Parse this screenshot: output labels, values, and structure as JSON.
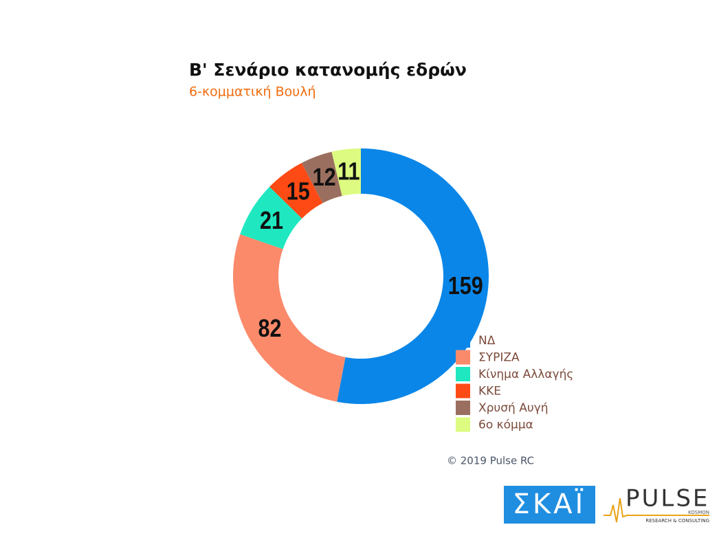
{
  "chart_data": {
    "type": "donut",
    "title": "Β' Σενάριο κατανομής εδρών",
    "subtitle": "6-κομματική Βουλή",
    "categories": [
      "ΝΔ",
      "ΣΥΡΙΖΑ",
      "Κίνημα Αλλαγής",
      "ΚΚΕ",
      "Χρυσή Αυγή",
      "6ο κόμμα"
    ],
    "values": [
      159,
      82,
      21,
      15,
      12,
      11
    ],
    "colors": [
      "#0a86e8",
      "#fb8a6b",
      "#1fe8c1",
      "#fe4b15",
      "#9b6f5f",
      "#dcfb80"
    ],
    "legend": "bottom-right"
  },
  "footer": {
    "copyright": "© 2019 Pulse RC",
    "logos": {
      "skai": "ΣΚΑΪ",
      "pulse": "PULSE",
      "pulse_sub": "RESEARCH & CONSULTING",
      "pulse_tag": "KOSMON"
    }
  }
}
